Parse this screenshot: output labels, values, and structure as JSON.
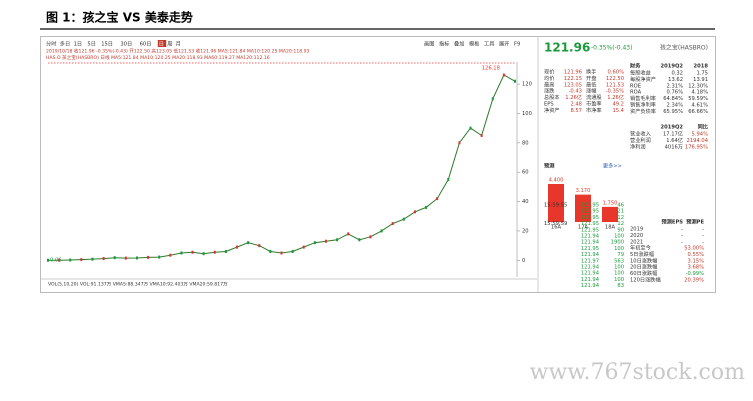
{
  "title": "图 1：孩之宝 VS 美泰走势",
  "toolbar": {
    "periods": [
      "分时",
      "多日",
      "1日",
      "5日",
      "15日",
      "30日",
      "60日",
      "日",
      "周",
      "月"
    ],
    "tools": [
      "画图",
      "指标",
      "叠加",
      "模板",
      "工具",
      "展开",
      "F9"
    ]
  },
  "info_line": "2019/10/18  收121.96  -0.35%(-0.43)  开122.50  高123.05  低121.53  收121.96  MA5:121.84  MA10:120.25  MA20:118.93",
  "legend_line": "HAS.O 孩之宝(HASBRO) 日线 MA5:121.84  MA10:120.25  MA20:118.93  MA60:119.27  MA120:112.16",
  "chart": {
    "ylim": [
      -10,
      133
    ],
    "yticks": [
      0,
      20,
      40,
      60,
      80,
      100,
      120
    ],
    "values": [
      0.06,
      0.1,
      0.2,
      0.5,
      0.8,
      1.2,
      1.8,
      1.5,
      1.6,
      2.0,
      2.2,
      3.5,
      5,
      5.5,
      4.5,
      5.5,
      6,
      9,
      12,
      10,
      6,
      5,
      6,
      9,
      12,
      13,
      14,
      18,
      14,
      16,
      20,
      25,
      28,
      33,
      36,
      42,
      55,
      80,
      90,
      85,
      110,
      126.18,
      121.96
    ],
    "high_label": "126.18",
    "low_label": "0.06"
  },
  "volume_line": "VOL(5,10,20)  VOL:91.137万  VMA5:88.347万  VMA10:92.403万  VMA20:59.817万",
  "quote": {
    "price": "121.96",
    "change": "-0.35%(-0.43)",
    "name": "孩之宝(HASBRO)"
  },
  "stats": [
    [
      "现价",
      "121.96",
      "换手",
      "0.60%"
    ],
    [
      "均价",
      "122.15",
      "开盘",
      "122.50"
    ],
    [
      "最高",
      "123.05",
      "最低",
      "121.53"
    ],
    [
      "涨跌",
      "-0.43",
      "涨幅",
      "-0.35%"
    ],
    [
      "总股本",
      "1.26亿",
      "流通股",
      "1.26亿"
    ],
    [
      "EPS",
      "2.48",
      "市盈率",
      "49.2"
    ],
    [
      "净资产",
      "8.57",
      "市净率",
      "15.4"
    ]
  ],
  "finance": {
    "header": [
      "财务",
      "2019Q2",
      "2018"
    ],
    "rows": [
      [
        "每股收益",
        "0.32",
        "1.75"
      ],
      [
        "每股净资产",
        "13.62",
        "13.91"
      ],
      [
        "ROE",
        "2.31%",
        "12.30%"
      ],
      [
        "ROA",
        "0.76%",
        "4.18%"
      ],
      [
        "销售毛利率",
        "64.84%",
        "59.59%"
      ],
      [
        "销售净利率",
        "2.34%",
        "4.61%"
      ],
      [
        "资产负债率",
        "65.95%",
        "66.66%"
      ]
    ],
    "header2": [
      "",
      "2019Q2",
      "同比"
    ],
    "rows2": [
      [
        "营业收入",
        "17.17亿",
        "5.94%"
      ],
      [
        "营业利润",
        "1.64亿",
        "2194.04"
      ],
      [
        "净利润",
        "4016万",
        "176.95%"
      ]
    ]
  },
  "forecast": {
    "title": "预测",
    "more": "更多>>",
    "categories": [
      "16A",
      "17A",
      "18A"
    ],
    "values": [
      4.4,
      3.17,
      1.75
    ],
    "value_labels": [
      "4.400",
      "3.170",
      "1.750"
    ],
    "color": "#e8362a"
  },
  "trades": [
    [
      "15:59:55",
      "121.95",
      "46"
    ],
    [
      "",
      "121.95",
      "21"
    ],
    [
      "",
      "121.95",
      "12"
    ],
    [
      "15:59:59",
      "121.95",
      "12"
    ],
    [
      "",
      "121.95",
      "90"
    ],
    [
      "",
      "121.94",
      "100"
    ],
    [
      "",
      "121.94",
      "1900"
    ],
    [
      "",
      "121.95",
      "100"
    ],
    [
      "",
      "121.94",
      "79"
    ],
    [
      "",
      "121.97",
      "563"
    ],
    [
      "",
      "121.94",
      "100"
    ],
    [
      "",
      "121.94",
      "100"
    ],
    [
      "",
      "121.94",
      "100"
    ],
    [
      "",
      "121.94",
      "83"
    ]
  ],
  "forecast_eps": {
    "header": [
      "预测EPS",
      "预测PE"
    ],
    "rows": [
      [
        "2019",
        "-",
        "-"
      ],
      [
        "2020",
        "-",
        "-"
      ],
      [
        "2021",
        "-",
        "-"
      ]
    ]
  },
  "returns": [
    [
      "年初至今",
      "53.00%"
    ],
    [
      "5日涨跌幅",
      "0.55%"
    ],
    [
      "10日涨跌幅",
      "3.15%"
    ],
    [
      "20日涨跌幅",
      "3.68%"
    ],
    [
      "60日涨跌幅",
      "-0.99%"
    ],
    [
      "120日涨跌幅",
      "20.39%"
    ]
  ],
  "watermark": "www.767stock.com"
}
